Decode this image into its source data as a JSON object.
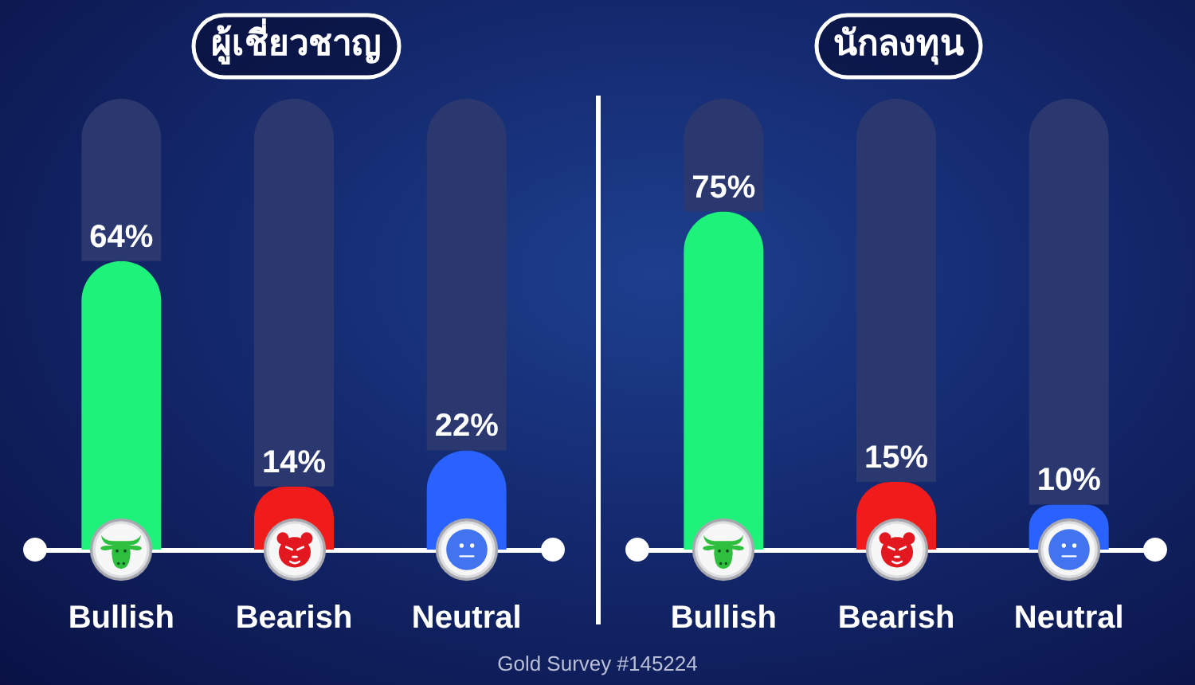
{
  "chart_data": [
    {
      "type": "bar",
      "title": "ผู้เชี่ยวชาญ",
      "categories": [
        "Bullish",
        "Bearish",
        "Neutral"
      ],
      "stacked": true,
      "series": [
        {
          "colors": [
            "#1ef27a",
            "#f01c1c",
            "#2962ff"
          ],
          "values": [
            64,
            14,
            22
          ],
          "value_labels": [
            "64%",
            "14%",
            "22%"
          ]
        },
        {
          "color": "#2b3870",
          "values": [
            36,
            86,
            78
          ]
        }
      ],
      "ylim": [
        0,
        100
      ],
      "tick_labels": "x",
      "annotations": [
        "Gold Survey #145224"
      ]
    },
    {
      "type": "bar",
      "title": "นักลงทุน",
      "categories": [
        "Bullish",
        "Bearish",
        "Neutral"
      ],
      "stacked": true,
      "series": [
        {
          "colors": [
            "#1ef27a",
            "#f01c1c",
            "#2962ff"
          ],
          "values": [
            75,
            15,
            10
          ],
          "value_labels": [
            "75%",
            "15%",
            "10%"
          ]
        },
        {
          "color": "#2b3870",
          "values": [
            25,
            85,
            90
          ]
        }
      ],
      "ylim": [
        0,
        100
      ],
      "tick_labels": "x"
    }
  ]
}
